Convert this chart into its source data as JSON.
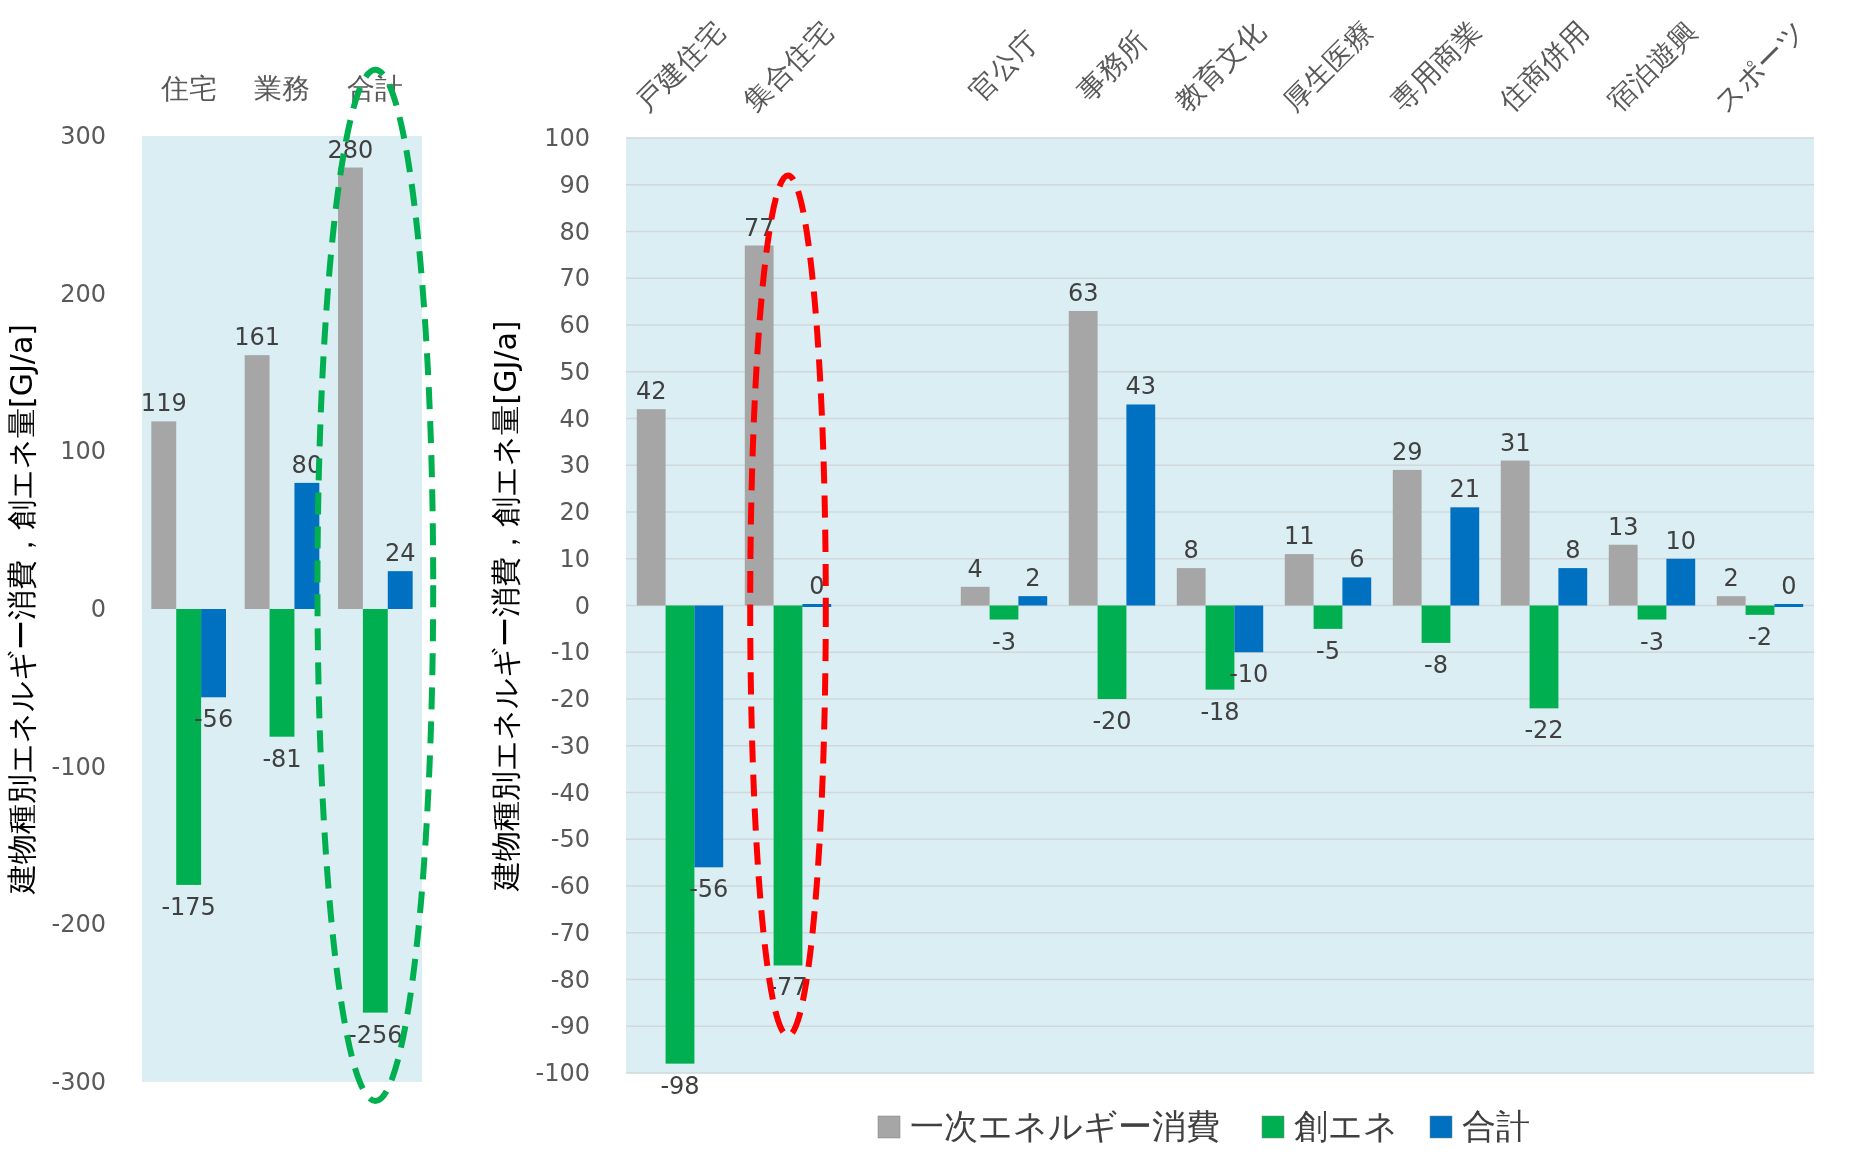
{
  "chart_data": [
    {
      "type": "bar",
      "ylabel": "建物種別エネルギー消費，創エネ量[GJ/a]",
      "categories": [
        "住宅",
        "業務",
        "合計"
      ],
      "ylim": [
        -300,
        300
      ],
      "yticks": [
        -300,
        -200,
        -100,
        0,
        100,
        200,
        300
      ],
      "grid": false,
      "legend": false,
      "data_labels": true,
      "series": [
        {
          "color": "#a6a6a6",
          "values": [
            119,
            161,
            280
          ]
        },
        {
          "color": "#00b050",
          "values": [
            -175,
            -81,
            -256
          ]
        },
        {
          "color": "#0070c0",
          "values": [
            -56,
            80,
            24
          ]
        }
      ]
    },
    {
      "type": "bar",
      "ylabel": "建物種別エネルギー消費，創エネ量[GJ/a]",
      "categories": [
        "戸建住宅",
        "集合住宅",
        null,
        "官公庁",
        "事務所",
        "教育文化",
        "厚生医療",
        "専用商業",
        "住商併用",
        "宿泊遊興",
        "スポーツ"
      ],
      "ylim": [
        -100,
        100
      ],
      "yticks": [
        -100,
        -90,
        -80,
        -70,
        -60,
        -50,
        -40,
        -30,
        -20,
        -10,
        0,
        10,
        20,
        30,
        40,
        50,
        60,
        70,
        80,
        90,
        100
      ],
      "grid": "y",
      "legend": "bottom",
      "data_labels": true,
      "series": [
        {
          "name": "一次エネルギー消費",
          "color": "#a6a6a6",
          "values": [
            42,
            77,
            null,
            4,
            63,
            8,
            11,
            29,
            31,
            13,
            2
          ]
        },
        {
          "name": "創エネ",
          "color": "#00b050",
          "values": [
            -98,
            -77,
            null,
            -3,
            -20,
            -18,
            -5,
            -8,
            -22,
            -3,
            -2
          ]
        },
        {
          "name": "合計",
          "color": "#0070c0",
          "values": [
            -56,
            0,
            null,
            2,
            43,
            -10,
            6,
            21,
            8,
            10,
            0
          ]
        }
      ]
    }
  ]
}
